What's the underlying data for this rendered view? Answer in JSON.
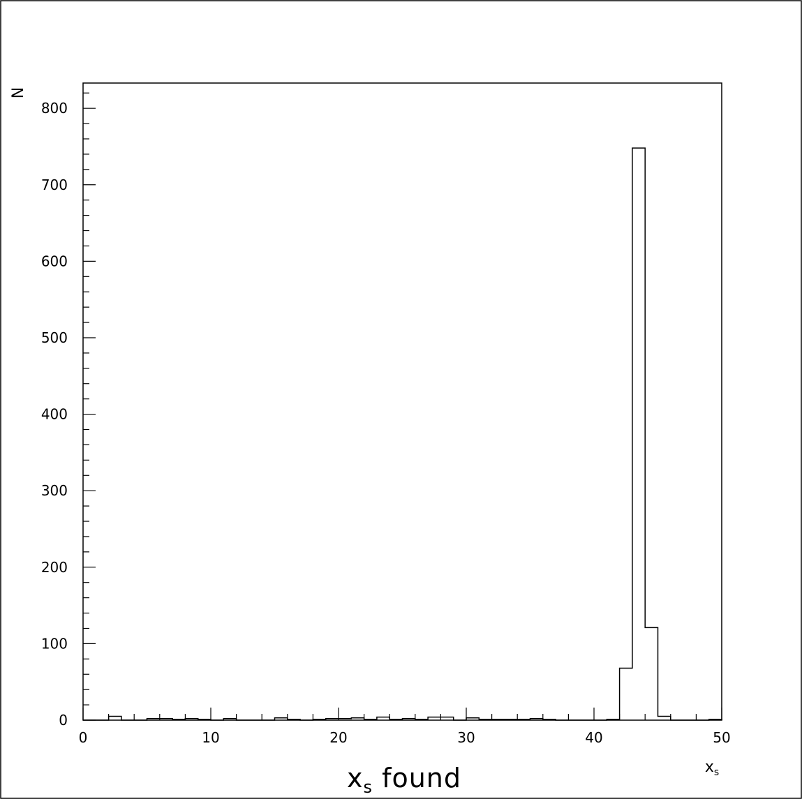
{
  "chart_data": {
    "type": "bar",
    "title": "",
    "xlabel_main": "x",
    "xlabel_main_sub": "s",
    "xlabel_main_suffix": " found",
    "xlabel_corner": "x",
    "xlabel_corner_sub": "s",
    "ylabel": "N",
    "xlim": [
      0,
      50
    ],
    "ylim": [
      0,
      833
    ],
    "x_ticks": [
      0,
      10,
      20,
      30,
      40,
      50
    ],
    "y_ticks": [
      0,
      100,
      200,
      300,
      400,
      500,
      600,
      700,
      800
    ],
    "x_tick_labels": [
      "0",
      "10",
      "20",
      "30",
      "40",
      "50"
    ],
    "y_tick_labels": [
      "0",
      "100",
      "200",
      "300",
      "400",
      "500",
      "600",
      "700",
      "800"
    ],
    "bin_width": 1,
    "bin_edges_start": 0,
    "values": [
      0,
      0,
      5,
      0,
      0,
      2,
      2,
      1,
      2,
      1,
      0,
      2,
      0,
      0,
      0,
      3,
      1,
      0,
      1,
      2,
      2,
      3,
      1,
      4,
      1,
      2,
      1,
      4,
      4,
      0,
      3,
      1,
      1,
      1,
      1,
      2,
      1,
      0,
      0,
      0,
      0,
      1,
      68,
      748,
      121,
      5,
      0,
      0,
      0,
      1
    ],
    "grid": false,
    "line_color": "#000000",
    "background_color": "#ffffff"
  }
}
